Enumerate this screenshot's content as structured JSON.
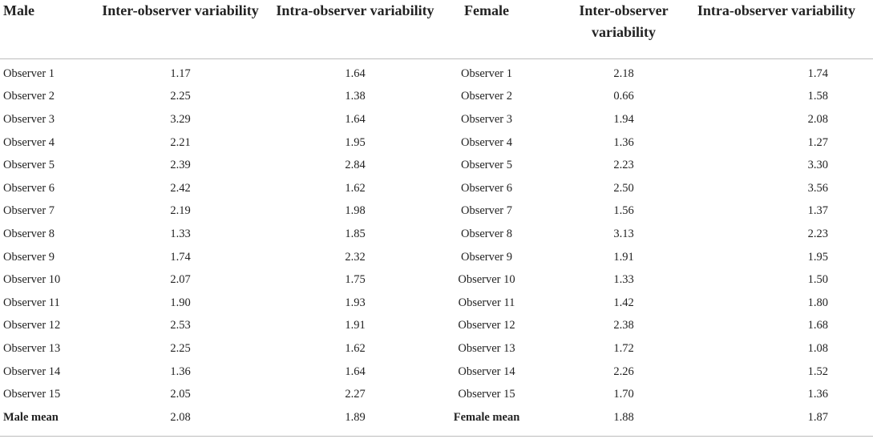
{
  "headers": {
    "male": "Male",
    "male_inter": "Inter-observer variability",
    "male_intra": "Intra-observer variability",
    "female": "Female",
    "female_inter": "Inter-observer variability",
    "female_intra": "Intra-observer variability"
  },
  "rows": [
    {
      "male_label": "Observer 1",
      "male_inter": "1.17",
      "male_intra": "1.64",
      "female_label": "Observer 1",
      "female_inter": "2.18",
      "female_intra": "1.74"
    },
    {
      "male_label": "Observer 2",
      "male_inter": "2.25",
      "male_intra": "1.38",
      "female_label": "Observer 2",
      "female_inter": "0.66",
      "female_intra": "1.58"
    },
    {
      "male_label": "Observer 3",
      "male_inter": "3.29",
      "male_intra": "1.64",
      "female_label": "Observer 3",
      "female_inter": "1.94",
      "female_intra": "2.08"
    },
    {
      "male_label": "Observer 4",
      "male_inter": "2.21",
      "male_intra": "1.95",
      "female_label": "Observer 4",
      "female_inter": "1.36",
      "female_intra": "1.27"
    },
    {
      "male_label": "Observer 5",
      "male_inter": "2.39",
      "male_intra": "2.84",
      "female_label": "Observer 5",
      "female_inter": "2.23",
      "female_intra": "3.30"
    },
    {
      "male_label": "Observer 6",
      "male_inter": "2.42",
      "male_intra": "1.62",
      "female_label": "Observer 6",
      "female_inter": "2.50",
      "female_intra": "3.56"
    },
    {
      "male_label": "Observer 7",
      "male_inter": "2.19",
      "male_intra": "1.98",
      "female_label": "Observer 7",
      "female_inter": "1.56",
      "female_intra": "1.37"
    },
    {
      "male_label": "Observer 8",
      "male_inter": "1.33",
      "male_intra": "1.85",
      "female_label": "Observer 8",
      "female_inter": "3.13",
      "female_intra": "2.23"
    },
    {
      "male_label": "Observer 9",
      "male_inter": "1.74",
      "male_intra": "2.32",
      "female_label": "Observer 9",
      "female_inter": "1.91",
      "female_intra": "1.95"
    },
    {
      "male_label": "Observer 10",
      "male_inter": "2.07",
      "male_intra": "1.75",
      "female_label": "Observer 10",
      "female_inter": "1.33",
      "female_intra": "1.50"
    },
    {
      "male_label": "Observer 11",
      "male_inter": "1.90",
      "male_intra": "1.93",
      "female_label": "Observer 11",
      "female_inter": "1.42",
      "female_intra": "1.80"
    },
    {
      "male_label": "Observer 12",
      "male_inter": "2.53",
      "male_intra": "1.91",
      "female_label": "Observer 12",
      "female_inter": "2.38",
      "female_intra": "1.68"
    },
    {
      "male_label": "Observer 13",
      "male_inter": "2.25",
      "male_intra": "1.62",
      "female_label": "Observer 13",
      "female_inter": "1.72",
      "female_intra": "1.08"
    },
    {
      "male_label": "Observer 14",
      "male_inter": "1.36",
      "male_intra": "1.64",
      "female_label": "Observer 14",
      "female_inter": "2.26",
      "female_intra": "1.52"
    },
    {
      "male_label": "Observer 15",
      "male_inter": "2.05",
      "male_intra": "2.27",
      "female_label": "Observer 15",
      "female_inter": "1.70",
      "female_intra": "1.36"
    }
  ],
  "means": {
    "male_label": "Male mean",
    "male_inter": "2.08",
    "male_intra": "1.89",
    "female_label": "Female mean",
    "female_inter": "1.88",
    "female_intra": "1.87"
  }
}
